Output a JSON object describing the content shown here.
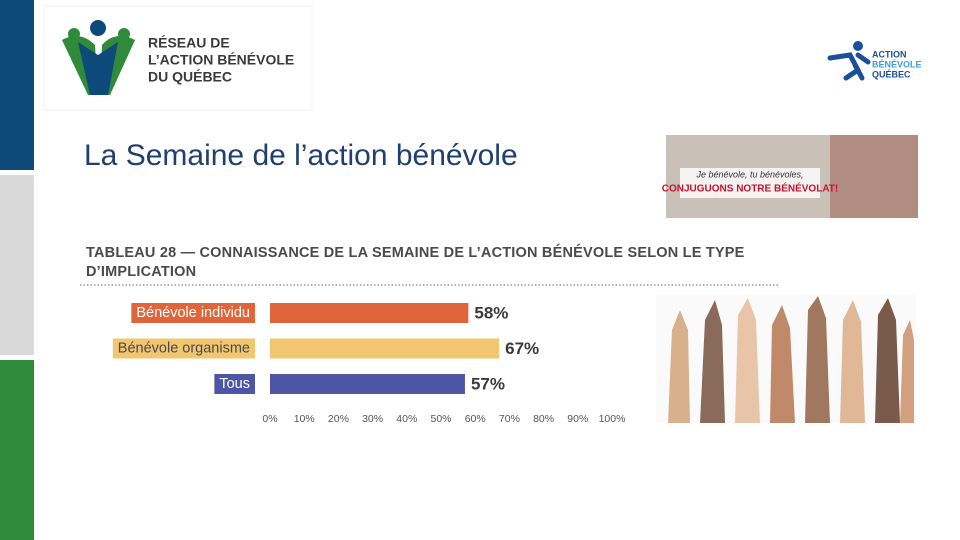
{
  "logo": {
    "lines": [
      "RÉSEAU DE",
      "L’ACTION BÉNÉVOLE",
      "DU QUÉBEC"
    ]
  },
  "slide_title": "La Semaine de l’action bénévole",
  "right_logo": {
    "lines": [
      "ACTION",
      "BÉNÉVOLE",
      "QUÉBEC"
    ]
  },
  "poster": {
    "tagline": "Je bénévole, tu bénévoles,",
    "headline": "CONJUGUONS NOTRE BÉNÉVOLAT!"
  },
  "chart_data": {
    "type": "hbar",
    "title": "TABLEAU 28 — CONNAISSANCE DE LA SEMAINE DE L’ACTION BÉNÉVOLE SELON LE TYPE D’IMPLICATION",
    "categories": [
      "Bénévole individu",
      "Bénévole organisme",
      "Tous"
    ],
    "values": [
      58,
      67,
      57
    ],
    "value_labels": [
      "58%",
      "67%",
      "57%"
    ],
    "colors": [
      "#e0653a",
      "#f2c56f",
      "#4c55a6"
    ],
    "xlim": [
      0,
      100
    ],
    "xticks": [
      {
        "value": 0,
        "label": "0%"
      },
      {
        "value": 10,
        "label": "10%"
      },
      {
        "value": 20,
        "label": "20%"
      },
      {
        "value": 30,
        "label": "30%"
      },
      {
        "value": 40,
        "label": "40%"
      },
      {
        "value": 50,
        "label": "50%"
      },
      {
        "value": 60,
        "label": "60%"
      },
      {
        "value": 70,
        "label": "70%"
      },
      {
        "value": 80,
        "label": "80%"
      },
      {
        "value": 90,
        "label": "90%"
      },
      {
        "value": 100,
        "label": "100%"
      }
    ]
  }
}
